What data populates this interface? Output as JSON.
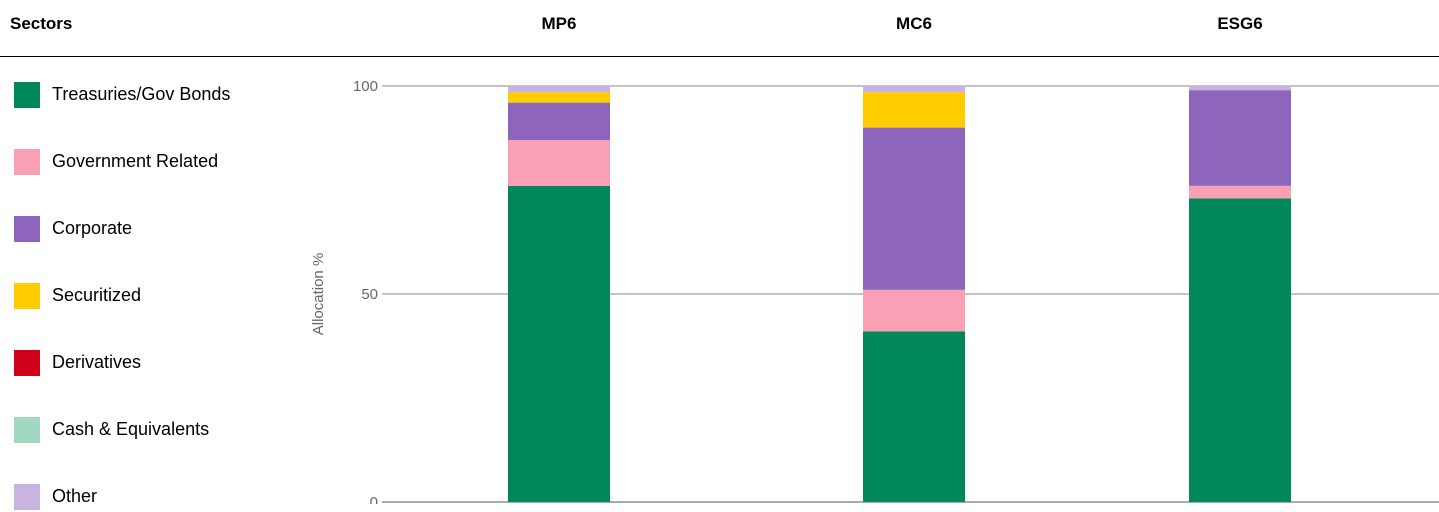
{
  "header": {
    "sectors_label": "Sectors"
  },
  "legend": [
    {
      "name": "Treasuries/Gov Bonds",
      "color": "#00875a"
    },
    {
      "name": "Government Related",
      "color": "#f9a0b5"
    },
    {
      "name": "Corporate",
      "color": "#8e65bd"
    },
    {
      "name": "Securitized",
      "color": "#ffcc00"
    },
    {
      "name": "Derivatives",
      "color": "#d0021b"
    },
    {
      "name": "Cash & Equivalents",
      "color": "#a1d8c2"
    },
    {
      "name": "Other",
      "color": "#c9b4e0"
    }
  ],
  "chart_data": {
    "type": "bar",
    "stacked": true,
    "categories": [
      "MP6",
      "MC6",
      "ESG6"
    ],
    "ylabel": "Allocation %",
    "ylim": [
      0,
      100
    ],
    "yticks": [
      "0",
      "50",
      "100"
    ],
    "grid": true,
    "series": [
      {
        "name": "Treasuries/Gov Bonds",
        "color": "#00875a",
        "values": [
          76,
          41,
          73
        ]
      },
      {
        "name": "Government Related",
        "color": "#f9a0b5",
        "values": [
          11,
          10,
          3
        ]
      },
      {
        "name": "Corporate",
        "color": "#8e65bd",
        "values": [
          9,
          39,
          23
        ]
      },
      {
        "name": "Securitized",
        "color": "#ffcc00",
        "values": [
          2.5,
          8.5,
          0
        ]
      },
      {
        "name": "Derivatives",
        "color": "#d0021b",
        "values": [
          0,
          0,
          0
        ]
      },
      {
        "name": "Cash & Equivalents",
        "color": "#a1d8c2",
        "values": [
          0,
          0,
          0
        ]
      },
      {
        "name": "Other",
        "color": "#c9b4e0",
        "values": [
          1.5,
          1.5,
          1
        ]
      }
    ]
  }
}
